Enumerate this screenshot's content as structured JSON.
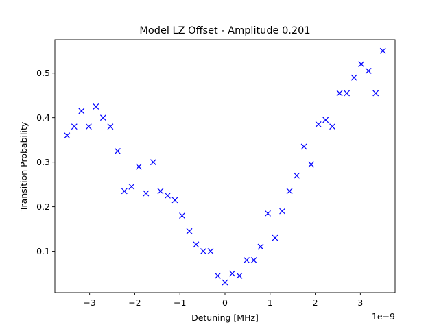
{
  "chart_data": {
    "type": "scatter",
    "title": "Model LZ Offset - Amplitude 0.201",
    "xlabel": "Detuning [MHz]",
    "ylabel": "Transition Probability",
    "x_offset_text": "1e−9",
    "xlim": [
      -3.77e-09,
      3.77e-09
    ],
    "ylim": [
      0.007,
      0.575
    ],
    "xticks": [
      {
        "value": -3e-09,
        "label": "−3"
      },
      {
        "value": -2e-09,
        "label": "−2"
      },
      {
        "value": -1e-09,
        "label": "−1"
      },
      {
        "value": 0,
        "label": "0"
      },
      {
        "value": 1e-09,
        "label": "1"
      },
      {
        "value": 2e-09,
        "label": "2"
      },
      {
        "value": 3e-09,
        "label": "3"
      }
    ],
    "yticks": [
      {
        "value": 0.1,
        "label": "0.1"
      },
      {
        "value": 0.2,
        "label": "0.2"
      },
      {
        "value": 0.3,
        "label": "0.3"
      },
      {
        "value": 0.4,
        "label": "0.4"
      },
      {
        "value": 0.5,
        "label": "0.5"
      }
    ],
    "marker": "x",
    "color": "#0000ff",
    "grid": false,
    "series": [
      {
        "x": [
          -3.5e-09,
          -3.34e-09,
          -3.18e-09,
          -3.02e-09,
          -2.86e-09,
          -2.7e-09,
          -2.54e-09,
          -2.38e-09,
          -2.23e-09,
          -2.07e-09,
          -1.91e-09,
          -1.75e-09,
          -1.59e-09,
          -1.43e-09,
          -1.27e-09,
          -1.11e-09,
          -9.5e-10,
          -7.9e-10,
          -6.4e-10,
          -4.8e-10,
          -3.2e-10,
          -1.6e-10,
          0,
          1.6e-10,
          3.2e-10,
          4.8e-10,
          6.4e-10,
          7.9e-10,
          9.5e-10,
          1.11e-09,
          1.27e-09,
          1.43e-09,
          1.59e-09,
          1.75e-09,
          1.91e-09,
          2.07e-09,
          2.23e-09,
          2.38e-09,
          2.54e-09,
          2.7e-09,
          2.86e-09,
          3.02e-09,
          3.18e-09,
          3.34e-09,
          3.5e-09
        ],
        "y": [
          0.36,
          0.38,
          0.415,
          0.38,
          0.425,
          0.4,
          0.38,
          0.325,
          0.235,
          0.245,
          0.29,
          0.23,
          0.3,
          0.235,
          0.225,
          0.215,
          0.18,
          0.145,
          0.115,
          0.1,
          0.1,
          0.045,
          0.03,
          0.05,
          0.045,
          0.08,
          0.08,
          0.11,
          0.185,
          0.13,
          0.19,
          0.235,
          0.27,
          0.335,
          0.295,
          0.385,
          0.395,
          0.38,
          0.455,
          0.455,
          0.49,
          0.52,
          0.505,
          0.455,
          0.55
        ]
      }
    ]
  }
}
